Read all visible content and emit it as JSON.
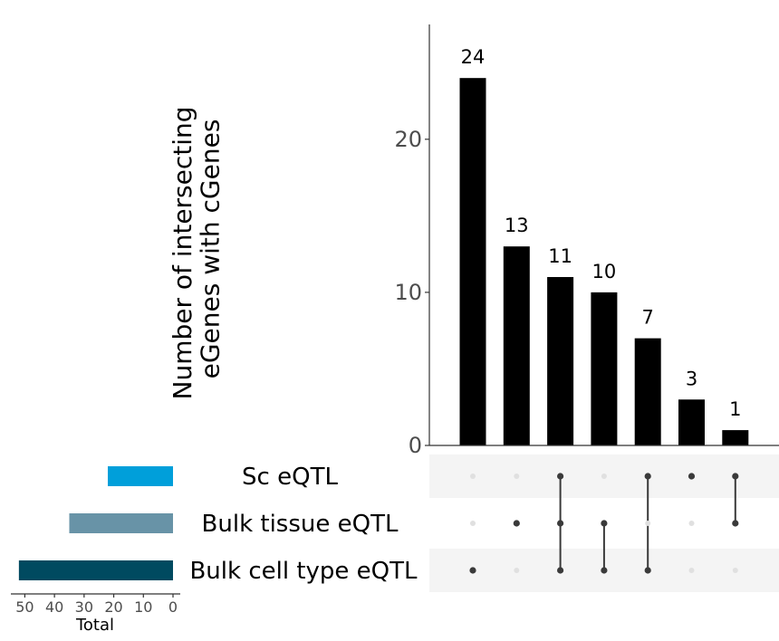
{
  "chart_data": {
    "type": "bar",
    "chart_kind": "upset",
    "ylabel_lines": [
      "Number of intersecting",
      "eGenes with cGenes"
    ],
    "yticks": [
      0,
      10,
      20
    ],
    "ylim": [
      0,
      27.5
    ],
    "bar_color": "#000000",
    "intersections": [
      {
        "value": 24,
        "label": "24",
        "members": [
          false,
          false,
          true
        ]
      },
      {
        "value": 13,
        "label": "13",
        "members": [
          false,
          true,
          false
        ]
      },
      {
        "value": 11,
        "label": "11",
        "members": [
          true,
          true,
          true
        ]
      },
      {
        "value": 10,
        "label": "10",
        "members": [
          false,
          true,
          true
        ]
      },
      {
        "value": 7,
        "label": "7",
        "members": [
          true,
          false,
          true
        ]
      },
      {
        "value": 3,
        "label": "3",
        "members": [
          true,
          false,
          false
        ]
      },
      {
        "value": 1,
        "label": "1",
        "members": [
          true,
          true,
          false
        ]
      }
    ],
    "sets": [
      {
        "name": "Sc eQTL",
        "total": 22,
        "color": "#009FDA"
      },
      {
        "name": "Bulk tissue eQTL",
        "total": 35,
        "color": "#6893A7"
      },
      {
        "name": "Bulk cell type eQTL",
        "total": 52,
        "color": "#004A60"
      }
    ],
    "total_axis": {
      "label": "Total",
      "ticks": [
        50,
        40,
        30,
        20,
        10,
        0
      ],
      "max": 54
    },
    "dot_active_color": "#3a3a3a",
    "dot_inactive_color": "#e0e0e0",
    "stripe_color": "#f4f4f4"
  }
}
